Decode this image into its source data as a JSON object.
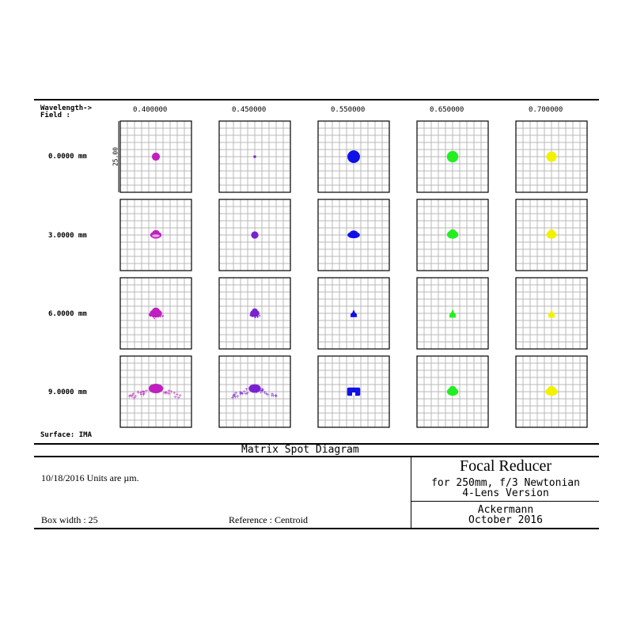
{
  "header": {
    "wavelength_label": "Wavelength->",
    "field_label": "Field       :",
    "wavelengths": [
      "0.400000",
      "0.450000",
      "0.550000",
      "0.650000",
      "0.700000"
    ]
  },
  "fields": [
    "0.0000 mm",
    "3.0000 mm",
    "6.0000 mm",
    "9.0000 mm"
  ],
  "scale_label": "25.00",
  "surface_label": "Surface: IMA",
  "colors": [
    "#c020c0",
    "#7a22d0",
    "#1010e8",
    "#22ee22",
    "#f2f200"
  ],
  "grid_divisions": 10,
  "spots": [
    [
      {
        "shape": "disk",
        "r": 3.5
      },
      {
        "shape": "square",
        "r": 1.2
      },
      {
        "shape": "disk",
        "r": 5.5
      },
      {
        "shape": "disk",
        "r": 5.0
      },
      {
        "shape": "disk",
        "r": 4.5
      }
    ],
    [
      {
        "shape": "blob",
        "rx": 5.5,
        "ry": 3.5,
        "dy": 0.0,
        "ring": 1
      },
      {
        "shape": "disk",
        "r": 3.2
      },
      {
        "shape": "blob",
        "rx": 6.0,
        "ry": 3.2,
        "dy": 0.0
      },
      {
        "shape": "blob",
        "rx": 5.5,
        "ry": 4.0,
        "dy": -0.5
      },
      {
        "shape": "blob",
        "rx": 5.0,
        "ry": 4.0,
        "dy": -0.5
      }
    ],
    [
      {
        "shape": "blob",
        "rx": 6.0,
        "ry": 4.0,
        "dy": 0.0,
        "scatter": 1
      },
      {
        "shape": "blob",
        "rx": 4.5,
        "ry": 3.5,
        "dy": 0.0,
        "scatter": 1
      },
      {
        "shape": "tri",
        "rx": 4.5,
        "ry": 4.0
      },
      {
        "shape": "tri",
        "rx": 4.5,
        "ry": 4.5
      },
      {
        "shape": "tri",
        "rx": 4.5,
        "ry": 4.5
      }
    ],
    [
      {
        "shape": "wide",
        "rx": 13.0,
        "ry": 5.0,
        "scatter": 2
      },
      {
        "shape": "wide",
        "rx": 11.0,
        "ry": 4.5,
        "scatter": 2
      },
      {
        "shape": "block",
        "rx": 5.5,
        "ry": 3.5
      },
      {
        "shape": "blob",
        "rx": 5.5,
        "ry": 4.0,
        "dy": 0.0
      },
      {
        "shape": "blob",
        "rx": 6.0,
        "ry": 4.0,
        "dy": 0.0
      }
    ]
  ],
  "footer": {
    "title": "Matrix Spot Diagram",
    "date_units": "10/18/2016  Units are µm.",
    "box_width": "Box width  : 25",
    "reference": "Reference  : Centroid",
    "lens_title": "Focal Reducer",
    "lens_sub1": "for 250mm, f/3 Newtonian",
    "lens_sub2": "4-Lens Version",
    "author": "Ackermann",
    "date": "October 2016"
  }
}
